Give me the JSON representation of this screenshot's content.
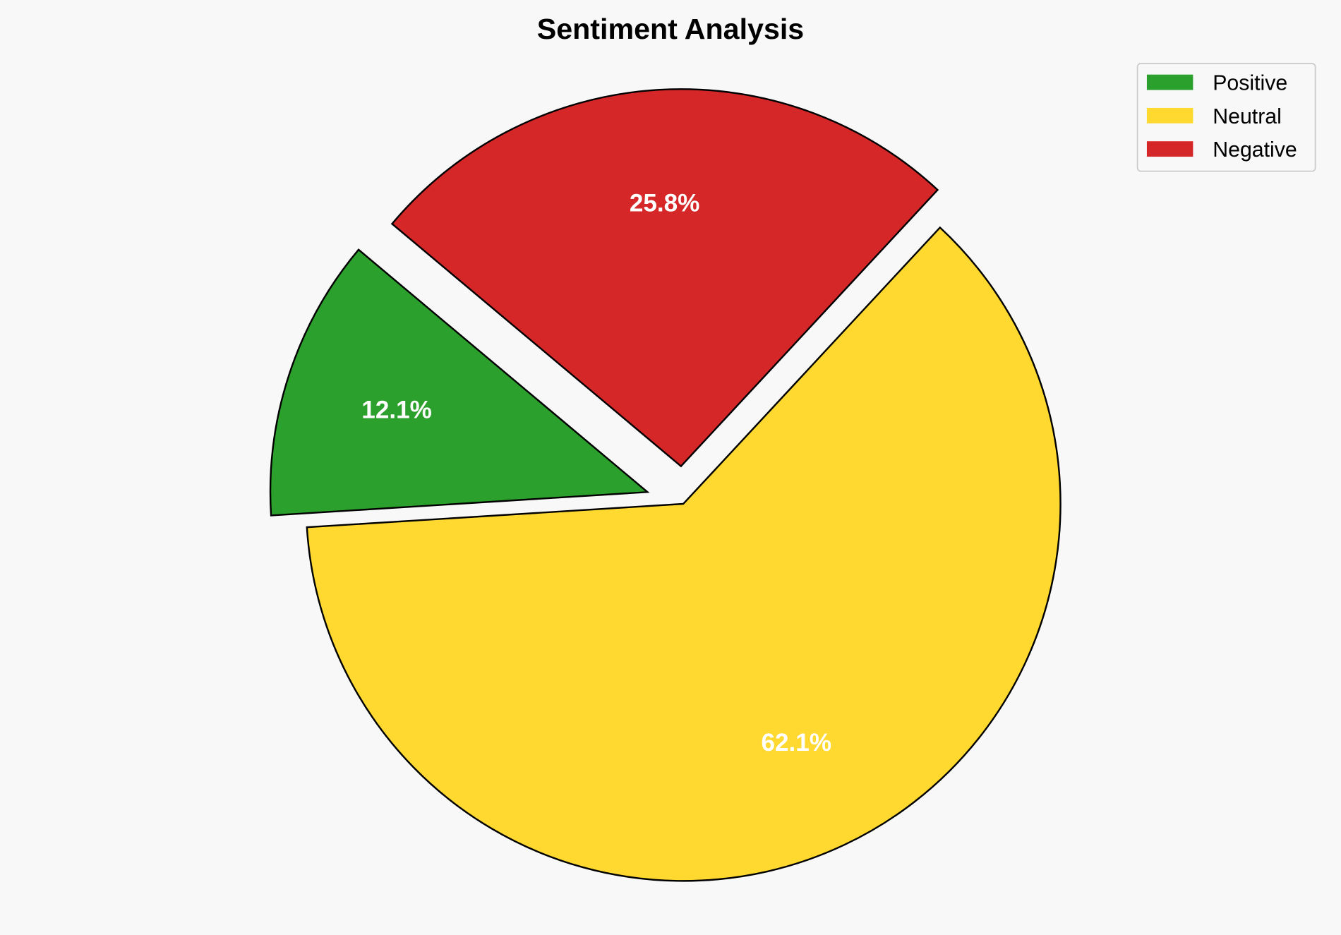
{
  "chart_data": {
    "type": "pie",
    "title": "Sentiment Analysis",
    "categories": [
      "Positive",
      "Neutral",
      "Negative"
    ],
    "values": [
      12.1,
      62.1,
      25.8
    ],
    "labels": [
      "12.1%",
      "62.1%",
      "25.8%"
    ],
    "colors": [
      "#2ca02c",
      "#ffd92f",
      "#d62728"
    ],
    "exploded": [
      true,
      false,
      true
    ],
    "start_angle_deg": 140,
    "direction": "counterclockwise",
    "legend": {
      "placement": "top-right",
      "entries": [
        "Positive",
        "Neutral",
        "Negative"
      ]
    },
    "edge_color": "#000000",
    "background": "#f8f8f8"
  }
}
